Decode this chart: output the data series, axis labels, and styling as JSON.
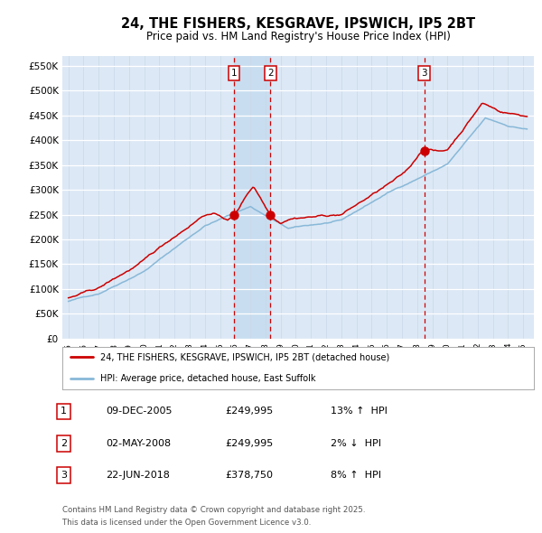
{
  "title": "24, THE FISHERS, KESGRAVE, IPSWICH, IP5 2BT",
  "subtitle": "Price paid vs. HM Land Registry's House Price Index (HPI)",
  "ylabel_vals": [
    "£0",
    "£50K",
    "£100K",
    "£150K",
    "£200K",
    "£250K",
    "£300K",
    "£350K",
    "£400K",
    "£450K",
    "£500K",
    "£550K"
  ],
  "yticks": [
    0,
    50000,
    100000,
    150000,
    200000,
    250000,
    300000,
    350000,
    400000,
    450000,
    500000,
    550000
  ],
  "ylim": [
    0,
    570000
  ],
  "bg_color": "#ffffff",
  "plot_bg_color": "#dce8f5",
  "grid_color": "#ffffff",
  "red_line_color": "#cc0000",
  "blue_line_color": "#88b8d8",
  "shade_color": "#c8ddf0",
  "legend_label_red": "24, THE FISHERS, KESGRAVE, IPSWICH, IP5 2BT (detached house)",
  "legend_label_blue": "HPI: Average price, detached house, East Suffolk",
  "footnote1": "Contains HM Land Registry data © Crown copyright and database right 2025.",
  "footnote2": "This data is licensed under the Open Government Licence v3.0.",
  "sale1_date": "09-DEC-2005",
  "sale1_price": 249995,
  "sale1_hpi_pct": "13%",
  "sale1_hpi_dir": "↑",
  "sale2_date": "02-MAY-2008",
  "sale2_price": 249995,
  "sale2_hpi_pct": "2%",
  "sale2_hpi_dir": "↓",
  "sale3_date": "22-JUN-2018",
  "sale3_price": 378750,
  "sale3_hpi_pct": "8%",
  "sale3_hpi_dir": "↑",
  "sale1_x": 2005.92,
  "sale2_x": 2008.33,
  "sale3_x": 2018.47
}
